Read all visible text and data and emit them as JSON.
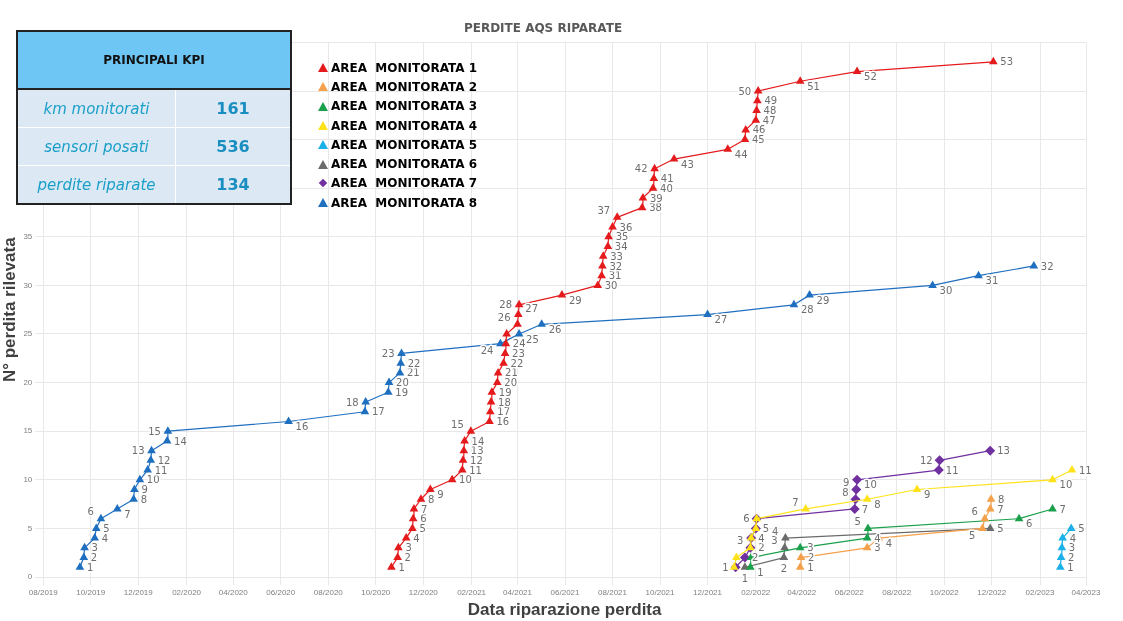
{
  "chart_data": [
    {
      "type": "other",
      "title": "PRINCIPALI KPI",
      "categories": [
        "km monitorati",
        "sensori posati",
        "perdite riparate"
      ],
      "values": [
        161,
        536,
        134
      ],
      "data_labels": true
    },
    {
      "type": "line",
      "title": "PERDITE AQS RIPARATE",
      "xlabel": "Data riparazione perdita",
      "ylabel": "N° perdita rilevata",
      "xlim": [
        "2019-08-01",
        "2023-04-01"
      ],
      "xticks": [
        {
          "value": "2019-08-01",
          "label": "08/2019"
        },
        {
          "value": "2019-10-01",
          "label": "10/2019"
        },
        {
          "value": "2019-12-01",
          "label": "12/2019"
        },
        {
          "value": "2020-02-01",
          "label": "02/2020"
        },
        {
          "value": "2020-04-01",
          "label": "04/2020"
        },
        {
          "value": "2020-06-01",
          "label": "06/2020"
        },
        {
          "value": "2020-08-01",
          "label": "08/2020"
        },
        {
          "value": "2020-10-01",
          "label": "10/2020"
        },
        {
          "value": "2020-12-01",
          "label": "12/2020"
        },
        {
          "value": "2021-02-01",
          "label": "02/2021"
        },
        {
          "value": "2021-04-01",
          "label": "04/2021"
        },
        {
          "value": "2021-06-01",
          "label": "06/2021"
        },
        {
          "value": "2021-08-01",
          "label": "08/2021"
        },
        {
          "value": "2021-10-01",
          "label": "10/2021"
        },
        {
          "value": "2021-12-01",
          "label": "12/2021"
        },
        {
          "value": "2022-02-01",
          "label": "02/2022"
        },
        {
          "value": "2022-04-01",
          "label": "04/2022"
        },
        {
          "value": "2022-06-01",
          "label": "06/2022"
        },
        {
          "value": "2022-08-01",
          "label": "08/2022"
        },
        {
          "value": "2022-10-01",
          "label": "10/2022"
        },
        {
          "value": "2022-12-01",
          "label": "12/2022"
        },
        {
          "value": "2023-02-01",
          "label": "02/2023"
        },
        {
          "value": "2023-04-01",
          "label": "04/2023"
        }
      ],
      "ylim": [
        0,
        55
      ],
      "yticks": [
        0,
        5,
        10,
        15,
        20,
        25,
        30,
        35,
        {
          "value": 40,
          "label": null
        },
        {
          "value": 45,
          "label": null
        },
        {
          "value": 50,
          "label": null
        },
        {
          "value": 55,
          "label": null
        }
      ],
      "grid": true,
      "legend": "top left",
      "marker": "triangle",
      "line_style": "solid",
      "data_labels": true,
      "series": [
        {
          "name": "AREA  MONITORATA 1",
          "color": "#e41a1c",
          "x": [
            "2020-10-21",
            "2020-10-29",
            "2020-10-30",
            "2020-11-09",
            "2020-11-17",
            "2020-11-18",
            "2020-11-19",
            "2020-11-28",
            "2020-12-10",
            "2021-01-07",
            "2021-01-20",
            "2021-01-21",
            "2021-01-22",
            "2021-01-23",
            "2021-01-31",
            "2021-02-24",
            "2021-02-25",
            "2021-02-26",
            "2021-02-27",
            "2021-03-06",
            "2021-03-07",
            "2021-03-14",
            "2021-03-16",
            "2021-03-17",
            "2021-03-18",
            "2021-04-01",
            "2021-04-02",
            "2021-04-03",
            "2021-05-28",
            "2021-07-13",
            "2021-07-18",
            "2021-07-19",
            "2021-07-20",
            "2021-07-26",
            "2021-07-27",
            "2021-08-01",
            "2021-08-07",
            "2021-09-08",
            "2021-09-09",
            "2021-09-22",
            "2021-09-23",
            "2021-09-24",
            "2021-10-19",
            "2021-12-27",
            "2022-01-18",
            "2022-01-19",
            "2022-02-01",
            "2022-02-02",
            "2022-02-03",
            "2022-02-04",
            "2022-03-30",
            "2022-06-11",
            "2022-12-03"
          ],
          "values": [
            1,
            2,
            3,
            4,
            5,
            6,
            7,
            8,
            9,
            10,
            11,
            12,
            13,
            14,
            15,
            16,
            17,
            18,
            19,
            20,
            21,
            22,
            23,
            24,
            25,
            26,
            27,
            28,
            29,
            30,
            31,
            32,
            33,
            34,
            35,
            36,
            37,
            38,
            39,
            40,
            41,
            42,
            43,
            44,
            45,
            46,
            47,
            48,
            49,
            50,
            51,
            52,
            53
          ],
          "value_labels": [
            "1",
            "2",
            "3",
            "4",
            "5",
            "6",
            "7",
            "8",
            "9",
            "10",
            "11",
            "12",
            "13",
            "14",
            "15",
            "16",
            "17",
            "18",
            "19",
            "20",
            "21",
            "22",
            "23",
            "24",
            null,
            "26",
            "27",
            "28",
            "29",
            "30",
            "31",
            "32",
            "33",
            "34",
            "35",
            "36",
            "37",
            "38",
            "39",
            "40",
            "41",
            "42",
            "43",
            "44",
            "45",
            "46",
            "47",
            "48",
            "49",
            "50",
            "51",
            "52",
            "53"
          ]
        },
        {
          "name": "AREA  MONITORATA 2",
          "color": "#f5a04a",
          "x": [
            "2022-03-30",
            "2022-03-31",
            "2022-06-24",
            "2022-07-09",
            "2022-11-19",
            "2022-11-22",
            "2022-11-29",
            "2022-11-30"
          ],
          "values": [
            1,
            2,
            3,
            4,
            5,
            6,
            7,
            8
          ]
        },
        {
          "name": "AREA  MONITORATA 3",
          "color": "#1aa04a",
          "x": [
            "2022-01-25",
            "2022-01-26",
            "2022-03-30",
            "2022-06-24",
            "2022-06-25",
            "2023-01-05",
            "2023-02-17"
          ],
          "values": [
            1,
            2,
            3,
            4,
            5,
            6,
            7
          ]
        },
        {
          "name": "AREA  MONITORATA 4",
          "color": "#ffe21a",
          "x": [
            "2022-01-04",
            "2022-01-07",
            "2022-01-25",
            "2022-01-26",
            "2022-02-01",
            "2022-02-02",
            "2022-04-06",
            "2022-06-24",
            "2022-08-27",
            "2023-02-17",
            "2023-03-14"
          ],
          "values": [
            1,
            2,
            3,
            4,
            5,
            6,
            7,
            8,
            9,
            10,
            11
          ],
          "value_labels": [
            null,
            null,
            null,
            null,
            null,
            null,
            "7",
            "8",
            "9",
            "10",
            "11"
          ]
        },
        {
          "name": "AREA  MONITORATA 5",
          "color": "#1ab0e8",
          "x": [
            "2023-02-27",
            "2023-02-28",
            "2023-03-01",
            "2023-03-02",
            "2023-03-13"
          ],
          "values": [
            1,
            2,
            3,
            4,
            5
          ]
        },
        {
          "name": "AREA  MONITORATA 6",
          "color": "#6b6b6b",
          "x": [
            "2022-01-18",
            "2022-03-09",
            "2022-03-10",
            "2022-03-11",
            "2022-11-29"
          ],
          "values": [
            1,
            2,
            3,
            4,
            5
          ]
        },
        {
          "name": "AREA  MONITORATA 7",
          "color": "#7030a0",
          "marker": "diamond",
          "x": [
            "2022-01-06",
            "2022-01-18",
            "2022-01-25",
            "2022-01-26",
            "2022-02-01",
            "2022-02-02",
            "2022-06-08",
            "2022-06-09",
            "2022-06-10",
            "2022-06-11",
            "2022-09-24",
            "2022-09-25",
            "2022-11-29"
          ],
          "values": [
            1,
            2,
            3,
            4,
            5,
            6,
            7,
            8,
            9,
            10,
            11,
            12,
            13
          ]
        },
        {
          "name": "AREA  MONITORATA 8",
          "color": "#1f6fc0",
          "x": [
            "2019-09-17",
            "2019-09-22",
            "2019-09-23",
            "2019-10-06",
            "2019-10-08",
            "2019-10-14",
            "2019-11-04",
            "2019-11-25",
            "2019-11-26",
            "2019-12-03",
            "2019-12-13",
            "2019-12-17",
            "2019-12-18",
            "2020-01-07",
            "2020-01-08",
            "2020-06-11",
            "2020-09-17",
            "2020-09-18",
            "2020-10-17",
            "2020-10-18",
            "2020-11-01",
            "2020-11-02",
            "2020-11-03",
            "2021-03-10",
            "2021-04-03",
            "2021-05-02",
            "2021-12-01",
            "2022-03-22",
            "2022-04-11",
            "2022-09-16",
            "2022-11-14",
            "2023-01-24"
          ],
          "values": [
            1,
            2,
            3,
            4,
            5,
            6,
            7,
            8,
            9,
            10,
            11,
            12,
            13,
            14,
            15,
            16,
            17,
            18,
            19,
            20,
            21,
            22,
            23,
            24,
            25,
            26,
            27,
            28,
            29,
            30,
            31,
            32
          ]
        }
      ]
    }
  ]
}
